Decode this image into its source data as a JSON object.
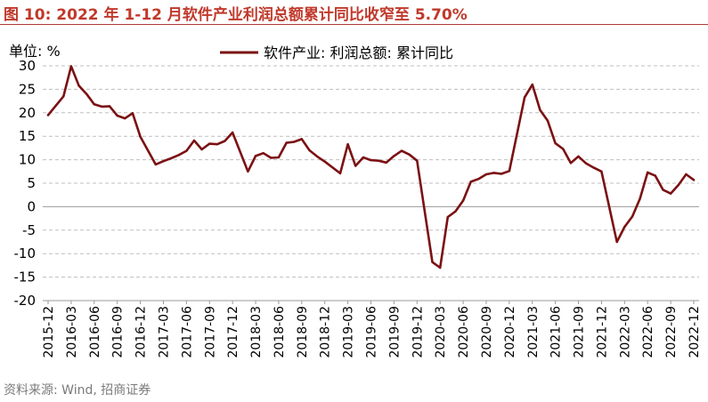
{
  "figure": {
    "title": "图 10:  2022 年 1-12 月软件产业利润总额累计同比收窄至 5.70%",
    "source": "资料来源: Wind, 招商证券"
  },
  "chart_data": {
    "type": "line",
    "unit_label": "单位:  %",
    "ylim": [
      -20,
      30
    ],
    "y_ticks": [
      30,
      25,
      20,
      15,
      10,
      5,
      0,
      -5,
      -10,
      -15,
      -20
    ],
    "grid": "horizontal dashed",
    "legend_position": "top-center",
    "x_ticks": [
      "2015-12",
      "2016-03",
      "2016-06",
      "2016-09",
      "2016-12",
      "2017-03",
      "2017-06",
      "2017-09",
      "2017-12",
      "2018-03",
      "2018-06",
      "2018-09",
      "2018-12",
      "2019-03",
      "2019-06",
      "2019-09",
      "2019-12",
      "2020-03",
      "2020-06",
      "2020-09",
      "2020-12",
      "2021-03",
      "2021-06",
      "2021-09",
      "2021-12",
      "2022-03",
      "2022-06",
      "2022-09",
      "2022-12"
    ],
    "series": [
      {
        "name": "软件产业: 利润总额: 累计同比",
        "color": "#7b1113",
        "x": [
          "2015-12",
          "2016-01",
          "2016-02",
          "2016-03",
          "2016-04",
          "2016-05",
          "2016-06",
          "2016-07",
          "2016-08",
          "2016-09",
          "2016-10",
          "2016-11",
          "2016-12",
          "2017-02",
          "2017-03",
          "2017-04",
          "2017-05",
          "2017-06",
          "2017-07",
          "2017-08",
          "2017-09",
          "2017-10",
          "2017-11",
          "2017-12",
          "2018-02",
          "2018-03",
          "2018-04",
          "2018-05",
          "2018-06",
          "2018-07",
          "2018-08",
          "2018-09",
          "2018-10",
          "2018-11",
          "2018-12",
          "2019-02",
          "2019-03",
          "2019-04",
          "2019-05",
          "2019-06",
          "2019-07",
          "2019-08",
          "2019-09",
          "2019-10",
          "2019-11",
          "2019-12",
          "2020-02",
          "2020-03",
          "2020-04",
          "2020-05",
          "2020-06",
          "2020-07",
          "2020-08",
          "2020-09",
          "2020-10",
          "2020-11",
          "2020-12",
          "2021-02",
          "2021-03",
          "2021-04",
          "2021-05",
          "2021-06",
          "2021-07",
          "2021-08",
          "2021-09",
          "2021-10",
          "2021-11",
          "2021-12",
          "2022-02",
          "2022-03",
          "2022-04",
          "2022-05",
          "2022-06",
          "2022-07",
          "2022-08",
          "2022-09",
          "2022-10",
          "2022-11",
          "2022-12"
        ],
        "values": [
          19.5,
          21.5,
          23.5,
          29.9,
          25.8,
          24.0,
          21.8,
          21.3,
          21.4,
          19.4,
          18.8,
          19.9,
          14.9,
          9.0,
          9.7,
          10.3,
          11.0,
          11.9,
          14.1,
          12.2,
          13.4,
          13.3,
          14.0,
          15.8,
          7.5,
          10.8,
          11.4,
          10.4,
          10.5,
          13.6,
          13.8,
          14.4,
          12.0,
          10.7,
          9.6,
          7.1,
          13.3,
          8.7,
          10.5,
          9.9,
          9.8,
          9.4,
          10.8,
          11.9,
          11.1,
          9.8,
          -11.8,
          -13.0,
          -2.2,
          -1.0,
          1.3,
          5.3,
          5.9,
          6.9,
          7.2,
          7.0,
          7.6,
          23.3,
          26.0,
          20.6,
          18.3,
          13.5,
          12.3,
          9.3,
          10.7,
          9.2,
          8.3,
          7.5,
          -7.5,
          -4.3,
          -2.1,
          1.7,
          7.3,
          6.6,
          3.6,
          2.8,
          4.6,
          6.9,
          5.7
        ]
      }
    ]
  }
}
